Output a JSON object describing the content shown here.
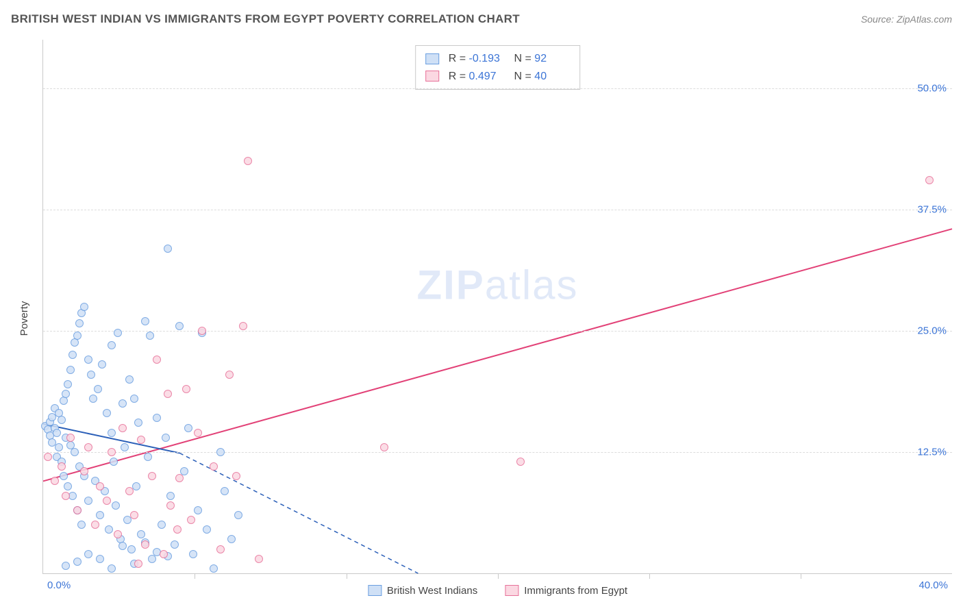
{
  "title": "BRITISH WEST INDIAN VS IMMIGRANTS FROM EGYPT POVERTY CORRELATION CHART",
  "source": "Source: ZipAtlas.com",
  "ylabel": "Poverty",
  "watermark": {
    "zip": "ZIP",
    "atlas": "atlas"
  },
  "chart": {
    "type": "scatter",
    "xlim": [
      0,
      40
    ],
    "ylim": [
      0,
      55
    ],
    "x_start_label": "0.0%",
    "x_end_label": "40.0%",
    "yticks": [
      {
        "v": 12.5,
        "label": "12.5%"
      },
      {
        "v": 25.0,
        "label": "25.0%"
      },
      {
        "v": 37.5,
        "label": "37.5%"
      },
      {
        "v": 50.0,
        "label": "50.0%"
      }
    ],
    "xtick_step": 6.67,
    "grid_color": "#dcdcdc",
    "axis_color": "#c9c9c9",
    "label_color": "#3b74d6",
    "marker_radius": 6,
    "series": {
      "bwi": {
        "name": "British West Indians",
        "fill": "#cfe0f6",
        "stroke": "#6a9ee0",
        "R_label": "R =",
        "R": "-0.193",
        "N_label": "N =",
        "N": "92",
        "trend": {
          "x1": 0,
          "y1": 15.4,
          "x2": 6.0,
          "y2": 12.4,
          "dash_to_x": 16.5,
          "dash_to_y": 0,
          "color": "#2b5fb8",
          "width": 2
        },
        "points": [
          [
            0.1,
            15.2
          ],
          [
            0.2,
            14.8
          ],
          [
            0.3,
            15.6
          ],
          [
            0.3,
            14.2
          ],
          [
            0.4,
            16.1
          ],
          [
            0.4,
            13.5
          ],
          [
            0.5,
            15.0
          ],
          [
            0.5,
            17.0
          ],
          [
            0.6,
            14.5
          ],
          [
            0.6,
            12.0
          ],
          [
            0.7,
            16.5
          ],
          [
            0.7,
            13.0
          ],
          [
            0.8,
            15.8
          ],
          [
            0.8,
            11.5
          ],
          [
            0.9,
            17.8
          ],
          [
            0.9,
            10.0
          ],
          [
            1.0,
            18.5
          ],
          [
            1.0,
            14.0
          ],
          [
            1.1,
            19.5
          ],
          [
            1.1,
            9.0
          ],
          [
            1.2,
            21.0
          ],
          [
            1.2,
            13.2
          ],
          [
            1.3,
            22.5
          ],
          [
            1.3,
            8.0
          ],
          [
            1.4,
            23.8
          ],
          [
            1.4,
            12.5
          ],
          [
            1.5,
            24.5
          ],
          [
            1.5,
            6.5
          ],
          [
            1.6,
            25.8
          ],
          [
            1.6,
            11.0
          ],
          [
            1.7,
            26.8
          ],
          [
            1.7,
            5.0
          ],
          [
            1.8,
            27.5
          ],
          [
            1.8,
            10.0
          ],
          [
            2.0,
            22.0
          ],
          [
            2.0,
            7.5
          ],
          [
            2.1,
            20.5
          ],
          [
            2.2,
            18.0
          ],
          [
            2.3,
            9.5
          ],
          [
            2.4,
            19.0
          ],
          [
            2.5,
            6.0
          ],
          [
            2.6,
            21.5
          ],
          [
            2.7,
            8.5
          ],
          [
            2.8,
            16.5
          ],
          [
            2.9,
            4.5
          ],
          [
            3.0,
            23.5
          ],
          [
            3.0,
            14.5
          ],
          [
            3.1,
            11.5
          ],
          [
            3.2,
            7.0
          ],
          [
            3.3,
            24.8
          ],
          [
            3.4,
            3.5
          ],
          [
            3.5,
            17.5
          ],
          [
            3.6,
            13.0
          ],
          [
            3.7,
            5.5
          ],
          [
            3.8,
            20.0
          ],
          [
            3.9,
            2.5
          ],
          [
            4.0,
            18.0
          ],
          [
            4.1,
            9.0
          ],
          [
            4.2,
            15.5
          ],
          [
            4.3,
            4.0
          ],
          [
            4.5,
            26.0
          ],
          [
            4.6,
            12.0
          ],
          [
            4.7,
            24.5
          ],
          [
            4.8,
            1.5
          ],
          [
            5.0,
            16.0
          ],
          [
            5.2,
            5.0
          ],
          [
            5.4,
            14.0
          ],
          [
            5.5,
            33.5
          ],
          [
            5.6,
            8.0
          ],
          [
            5.8,
            3.0
          ],
          [
            6.0,
            25.5
          ],
          [
            6.2,
            10.5
          ],
          [
            6.4,
            15.0
          ],
          [
            6.6,
            2.0
          ],
          [
            6.8,
            6.5
          ],
          [
            7.0,
            24.8
          ],
          [
            7.2,
            4.5
          ],
          [
            7.5,
            0.5
          ],
          [
            7.8,
            12.5
          ],
          [
            8.0,
            8.5
          ],
          [
            8.3,
            3.5
          ],
          [
            8.6,
            6.0
          ],
          [
            1.0,
            0.8
          ],
          [
            1.5,
            1.2
          ],
          [
            2.0,
            2.0
          ],
          [
            2.5,
            1.5
          ],
          [
            3.0,
            0.5
          ],
          [
            3.5,
            2.8
          ],
          [
            4.0,
            1.0
          ],
          [
            4.5,
            3.2
          ],
          [
            5.0,
            2.2
          ],
          [
            5.5,
            1.8
          ]
        ]
      },
      "egypt": {
        "name": "Immigrants from Egypt",
        "fill": "#fbd8e2",
        "stroke": "#e77199",
        "R_label": "R =",
        "R": "0.497",
        "N_label": "N =",
        "N": "40",
        "trend": {
          "x1": 0,
          "y1": 9.5,
          "x2": 40,
          "y2": 35.5,
          "color": "#e24177",
          "width": 2
        },
        "points": [
          [
            0.2,
            12.0
          ],
          [
            0.5,
            9.5
          ],
          [
            0.8,
            11.0
          ],
          [
            1.0,
            8.0
          ],
          [
            1.2,
            14.0
          ],
          [
            1.5,
            6.5
          ],
          [
            1.8,
            10.5
          ],
          [
            2.0,
            13.0
          ],
          [
            2.3,
            5.0
          ],
          [
            2.5,
            9.0
          ],
          [
            2.8,
            7.5
          ],
          [
            3.0,
            12.5
          ],
          [
            3.3,
            4.0
          ],
          [
            3.5,
            15.0
          ],
          [
            3.8,
            8.5
          ],
          [
            4.0,
            6.0
          ],
          [
            4.3,
            13.8
          ],
          [
            4.5,
            3.0
          ],
          [
            4.8,
            10.0
          ],
          [
            5.0,
            22.0
          ],
          [
            5.3,
            2.0
          ],
          [
            5.6,
            7.0
          ],
          [
            5.9,
            4.5
          ],
          [
            6.0,
            9.8
          ],
          [
            6.3,
            19.0
          ],
          [
            6.5,
            5.5
          ],
          [
            7.0,
            25.0
          ],
          [
            7.5,
            11.0
          ],
          [
            7.8,
            2.5
          ],
          [
            8.2,
            20.5
          ],
          [
            8.5,
            10.0
          ],
          [
            9.0,
            42.5
          ],
          [
            9.5,
            1.5
          ],
          [
            15.0,
            13.0
          ],
          [
            21.0,
            11.5
          ],
          [
            39.0,
            40.5
          ],
          [
            6.8,
            14.5
          ],
          [
            8.8,
            25.5
          ],
          [
            5.5,
            18.5
          ],
          [
            4.2,
            1.0
          ]
        ]
      }
    }
  }
}
